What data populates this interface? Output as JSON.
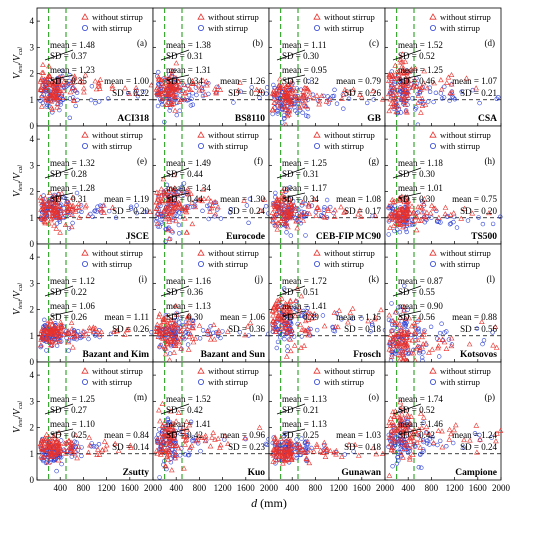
{
  "figure": {
    "xlabel_var": "d",
    "xlabel_unit": " (mm)",
    "ylabel_num": "V",
    "ylabel_num_sub": "test",
    "ylabel_sep": "/",
    "ylabel_den": "V",
    "ylabel_den_sub": "cal",
    "legend_without": "without stirrup",
    "legend_with": "with stirrup",
    "colors": {
      "without": "#e8322d",
      "with": "#2b3fd6",
      "vline": "#3aa832",
      "hline": "#000000"
    }
  },
  "chart_data": {
    "type": "scatter",
    "xlim": [
      0,
      2000
    ],
    "ylim": [
      0,
      4.5
    ],
    "x_ticks": [
      0,
      400,
      800,
      1200,
      1600,
      2000
    ],
    "x_tick_labels": [
      "",
      "400",
      "800",
      "1200",
      "1600",
      "2000"
    ],
    "y_ticks": [
      0,
      1,
      2,
      3,
      4
    ],
    "y_tick_labels": [
      "0",
      "1",
      "2",
      "3",
      "4"
    ],
    "reference_lines": {
      "horizontal_y": 1.0,
      "vertical_x": [
        200,
        500
      ]
    },
    "legend_placement": "top-right",
    "panels": [
      {
        "letter": "(a)",
        "code": "ACI318",
        "wo": {
          "m": "1.48",
          "s": "0.37"
        },
        "w": {
          "m": "1.23",
          "s": "0.35"
        },
        "all": {
          "m": "1.00",
          "s": "0.22"
        }
      },
      {
        "letter": "(b)",
        "code": "BS8110",
        "wo": {
          "m": "1.38",
          "s": "0.31"
        },
        "w": {
          "m": "1.31",
          "s": "0.34"
        },
        "all": {
          "m": "1.26",
          "s": "0.20"
        }
      },
      {
        "letter": "(c)",
        "code": "GB",
        "wo": {
          "m": "1.11",
          "s": "0.30"
        },
        "w": {
          "m": "0.95",
          "s": "0.32"
        },
        "all": {
          "m": "0.79",
          "s": "0.26"
        }
      },
      {
        "letter": "(d)",
        "code": "CSA",
        "wo": {
          "m": "1.52",
          "s": "0.52"
        },
        "w": {
          "m": "1.25",
          "s": "0.46"
        },
        "all": {
          "m": "1.07",
          "s": "0.21"
        }
      },
      {
        "letter": "(e)",
        "code": "JSCE",
        "wo": {
          "m": "1.32",
          "s": "0.28"
        },
        "w": {
          "m": "1.28",
          "s": "0.31"
        },
        "all": {
          "m": "1.19",
          "s": "0.20"
        }
      },
      {
        "letter": "(f)",
        "code": "Eurocode",
        "wo": {
          "m": "1.49",
          "s": "0.44"
        },
        "w": {
          "m": "1.34",
          "s": "0.44"
        },
        "all": {
          "m": "1.30",
          "s": "0.24"
        }
      },
      {
        "letter": "(g)",
        "code": "CEB-FIP MC90",
        "wo": {
          "m": "1.25",
          "s": "0.31"
        },
        "w": {
          "m": "1.17",
          "s": "0.34"
        },
        "all": {
          "m": "1.08",
          "s": "0.17"
        }
      },
      {
        "letter": "(h)",
        "code": "TS500",
        "wo": {
          "m": "1.18",
          "s": "0.30"
        },
        "w": {
          "m": "1.01",
          "s": "0.30"
        },
        "all": {
          "m": "0.75",
          "s": "0.20"
        }
      },
      {
        "letter": "(i)",
        "code": "Bazant and Kim",
        "wo": {
          "m": "1.12",
          "s": "0.22"
        },
        "w": {
          "m": "1.06",
          "s": "0.26"
        },
        "all": {
          "m": "1.11",
          "s": "0.26"
        }
      },
      {
        "letter": "(j)",
        "code": "Bazant and Sun",
        "wo": {
          "m": "1.16",
          "s": "0.36"
        },
        "w": {
          "m": "1.13",
          "s": "0.30"
        },
        "all": {
          "m": "1.06",
          "s": "0.36"
        }
      },
      {
        "letter": "(k)",
        "code": "Frosch",
        "wo": {
          "m": "1.72",
          "s": "0.51"
        },
        "w": {
          "m": "1.41",
          "s": "0.39"
        },
        "all": {
          "m": "1.15",
          "s": "0.18"
        }
      },
      {
        "letter": "(l)",
        "code": "Kotsovos",
        "wo": {
          "m": "0.87",
          "s": "0.55"
        },
        "w": {
          "m": "0.90",
          "s": "0.56"
        },
        "all": {
          "m": "0.88",
          "s": "0.56"
        }
      },
      {
        "letter": "(m)",
        "code": "Zsutty",
        "wo": {
          "m": "1.25",
          "s": "0.27"
        },
        "w": {
          "m": "1.10",
          "s": "0.25"
        },
        "all": {
          "m": "0.84",
          "s": "0.14"
        }
      },
      {
        "letter": "(n)",
        "code": "Kuo",
        "wo": {
          "m": "1.52",
          "s": "0.42"
        },
        "w": {
          "m": "1.41",
          "s": "0.42"
        },
        "all": {
          "m": "0.96",
          "s": "0.23"
        }
      },
      {
        "letter": "(o)",
        "code": "Gunawan",
        "wo": {
          "m": "1.13",
          "s": "0.21"
        },
        "w": {
          "m": "1.13",
          "s": "0.25"
        },
        "all": {
          "m": "1.03",
          "s": "0.18"
        }
      },
      {
        "letter": "(p)",
        "code": "Campione",
        "wo": {
          "m": "1.74",
          "s": "0.52"
        },
        "w": {
          "m": "1.46",
          "s": "0.42"
        },
        "all": {
          "m": "1.24",
          "s": "0.24"
        }
      }
    ]
  }
}
